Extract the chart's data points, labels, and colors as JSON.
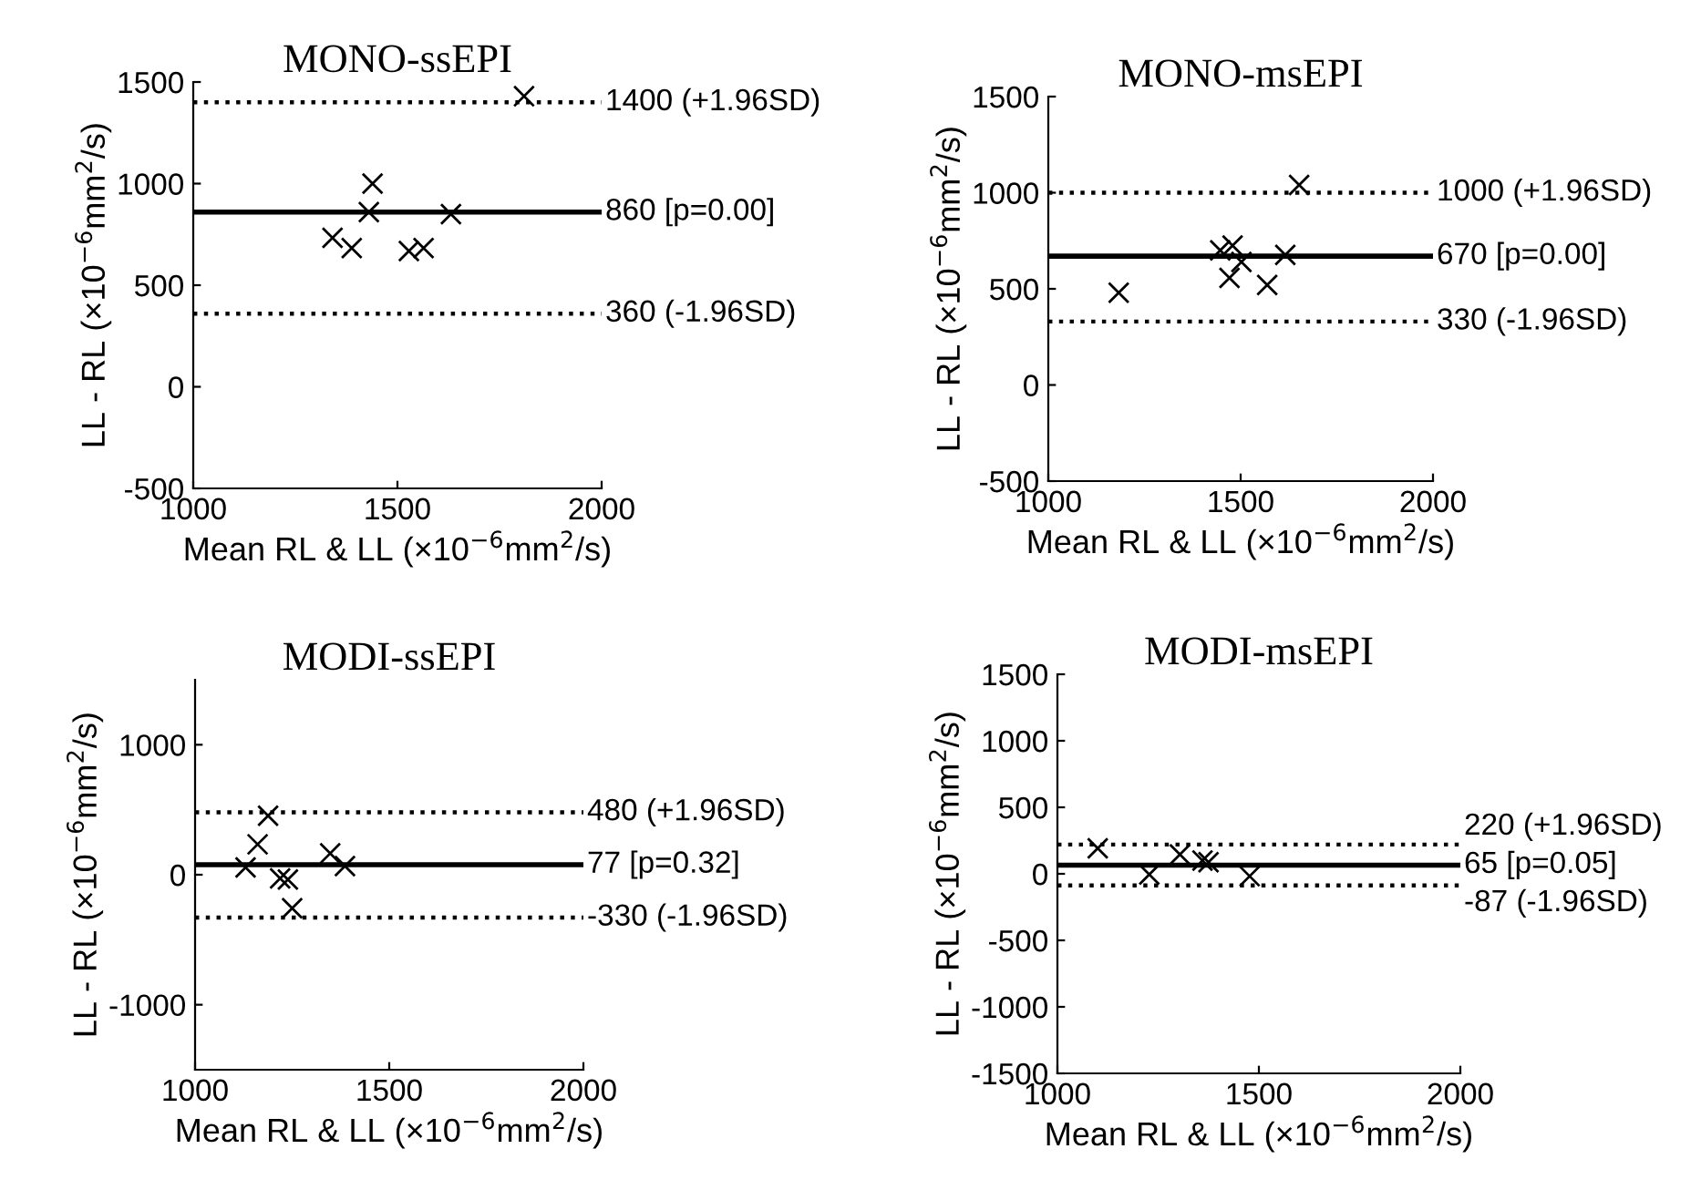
{
  "chart_data": [
    {
      "type": "scatter",
      "title": "MONO-ssEPI",
      "xlabel": "Mean RL & LL (×10$^{−6}$mm$^{2}$/s)",
      "ylabel": "LL - RL (×10$^{−6}$mm$^{2}$/s)",
      "marker": "cross",
      "xlim": [
        1000,
        2000
      ],
      "xticks": [
        1000,
        1500,
        2000
      ],
      "ylim": [
        -500,
        1500
      ],
      "yticks": [
        -500,
        0,
        500,
        1000,
        1500
      ],
      "grid": false,
      "legend": false,
      "series": [
        {
          "color": "#000000",
          "x": [
            1810,
            1439,
            1430,
            1631,
            1341,
            1388,
            1528,
            1564
          ],
          "values": [
            1430,
            1000,
            860,
            850,
            733,
            683,
            668,
            683
          ]
        }
      ],
      "ref_lines": [
        {
          "axis": "y",
          "value": 1400,
          "label": "1400 (+1.96SD)",
          "line_style": "dotted",
          "color": "#000000"
        },
        {
          "axis": "y",
          "value": 860,
          "label": "860 [p=0.00]",
          "line_style": "solid",
          "color": "#000000"
        },
        {
          "axis": "y",
          "value": 360,
          "label": "360 (-1.96SD)",
          "line_style": "dotted",
          "color": "#000000"
        }
      ]
    },
    {
      "type": "scatter",
      "title": "MONO-msEPI",
      "xlabel": "Mean RL & LL (×10$^{−6}$mm$^{2}$/s)",
      "ylabel": "LL - RL (×10$^{−6}$mm$^{2}$/s)",
      "marker": "cross",
      "xlim": [
        1000,
        2000
      ],
      "xticks": [
        1000,
        1500,
        2000
      ],
      "ylim": [
        -500,
        1500
      ],
      "yticks": [
        -500,
        0,
        500,
        1000,
        1500
      ],
      "grid": false,
      "legend": false,
      "series": [
        {
          "color": "#000000",
          "x": [
            1652,
            1183,
            1447,
            1479,
            1471,
            1502,
            1569,
            1616
          ],
          "values": [
            1040,
            480,
            700,
            725,
            557,
            640,
            520,
            677
          ]
        }
      ],
      "ref_lines": [
        {
          "axis": "y",
          "value": 1000,
          "label": "1000 (+1.96SD)",
          "line_style": "dotted",
          "color": "#000000"
        },
        {
          "axis": "y",
          "value": 670,
          "label": "670 [p=0.00]",
          "line_style": "solid",
          "color": "#000000"
        },
        {
          "axis": "y",
          "value": 330,
          "label": "330 (-1.96SD)",
          "line_style": "dotted",
          "color": "#000000"
        }
      ]
    },
    {
      "type": "scatter",
      "title": "MODI-ssEPI",
      "xlabel": "Mean RL & LL (×10$^{−6}$mm$^{2}$/s)",
      "ylabel": "LL - RL (×10$^{−6}$mm$^{2}$/s)",
      "marker": "cross",
      "xlim": [
        1000,
        2000
      ],
      "xticks": [
        1000,
        1500,
        2000
      ],
      "ylim": [
        -1500,
        1500
      ],
      "yticks": [
        -1000,
        0,
        1000
      ],
      "grid": false,
      "legend": false,
      "series": [
        {
          "color": "#000000",
          "x": [
            1188,
            1161,
            1130,
            1219,
            1239,
            1250,
            1348,
            1386
          ],
          "values": [
            454,
            234,
            56,
            -28,
            -37,
            -258,
            164,
            66
          ]
        }
      ],
      "ref_lines": [
        {
          "axis": "y",
          "value": 480,
          "label": "480 (+1.96SD)",
          "line_style": "dotted",
          "color": "#000000"
        },
        {
          "axis": "y",
          "value": 77,
          "label": "77 [p=0.32]",
          "line_style": "solid",
          "color": "#000000"
        },
        {
          "axis": "y",
          "value": -330,
          "label": "-330 (-1.96SD)",
          "line_style": "dotted",
          "color": "#000000"
        }
      ]
    },
    {
      "type": "scatter",
      "title": "MODI-msEPI",
      "xlabel": "Mean RL & LL (×10$^{−6}$mm$^{2}$/s)",
      "ylabel": "LL - RL (×10$^{−6}$mm$^{2}$/s)",
      "marker": "cross",
      "xlim": [
        1000,
        2000
      ],
      "xticks": [
        1000,
        1500,
        2000
      ],
      "ylim": [
        -1500,
        1500
      ],
      "yticks": [
        -1500,
        -1000,
        -500,
        0,
        500,
        1000,
        1500
      ],
      "grid": false,
      "legend": false,
      "series": [
        {
          "color": "#000000",
          "x": [
            1100,
            1228,
            1304,
            1360,
            1375,
            1477
          ],
          "values": [
            192,
            -5,
            146,
            100,
            87,
            -18
          ]
        }
      ],
      "ref_lines": [
        {
          "axis": "y",
          "value": 220,
          "label": "220 (+1.96SD)",
          "line_style": "dotted",
          "color": "#000000"
        },
        {
          "axis": "y",
          "value": 65,
          "label": "65 [p=0.05]",
          "line_style": "solid",
          "color": "#000000"
        },
        {
          "axis": "y",
          "value": -87,
          "label": "-87 (-1.96SD)",
          "line_style": "dotted",
          "color": "#000000"
        }
      ]
    }
  ]
}
